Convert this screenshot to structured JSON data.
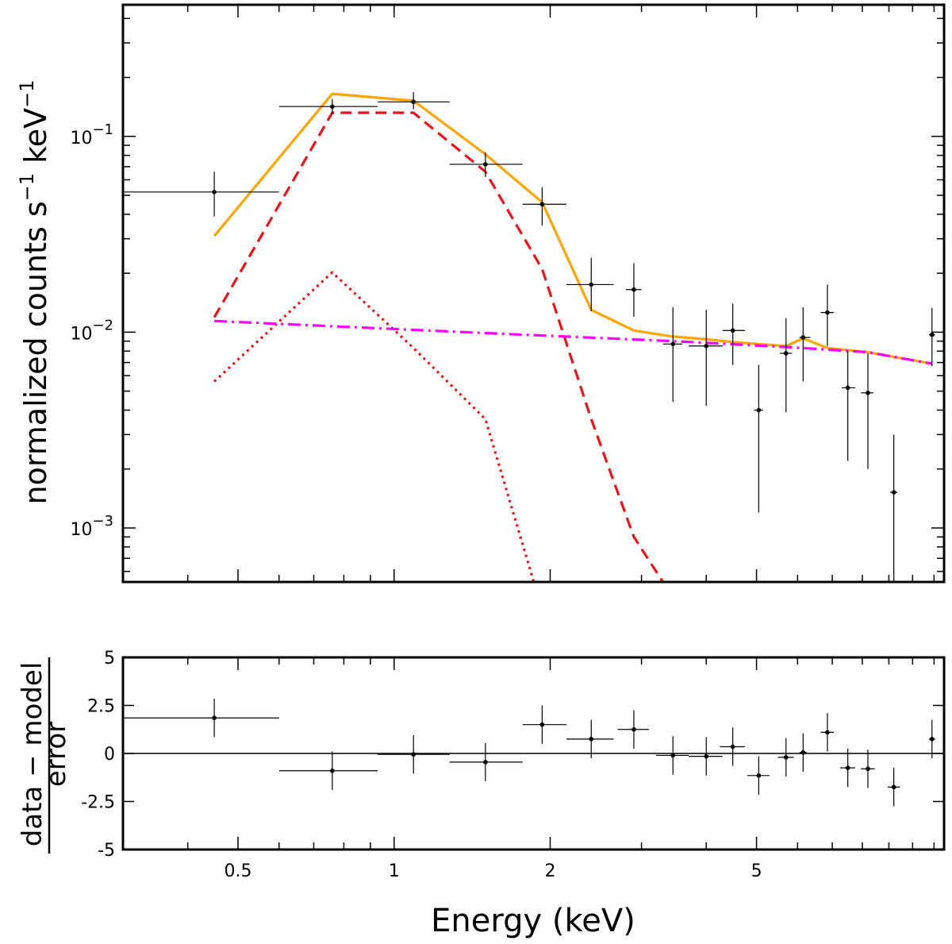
{
  "chart_data": [
    {
      "type": "scatter",
      "panel": "spectrum",
      "xscale": "log",
      "yscale": "log",
      "xlim": [
        0.3,
        11.5
      ],
      "ylim": [
        0.00053,
        0.47
      ],
      "ylabel_main": "normalized counts s",
      "ylabel_sup1": "−1",
      "ylabel_mid": " keV",
      "ylabel_sup2": "−1",
      "ytick_labels": [
        {
          "value": 0.1,
          "base": "10",
          "exp": "−1"
        },
        {
          "value": 0.01,
          "base": "10",
          "exp": "−2"
        },
        {
          "value": 0.001,
          "base": "10",
          "exp": "−3"
        }
      ],
      "data_points": [
        {
          "x": 0.45,
          "xlo": 0.3,
          "xhi": 0.6,
          "y": 0.052,
          "ylo": 0.039,
          "yhi": 0.066
        },
        {
          "x": 0.76,
          "xlo": 0.6,
          "xhi": 0.93,
          "y": 0.142,
          "ylo": 0.13,
          "yhi": 0.155
        },
        {
          "x": 1.09,
          "xlo": 0.93,
          "xhi": 1.28,
          "y": 0.15,
          "ylo": 0.138,
          "yhi": 0.168
        },
        {
          "x": 1.5,
          "xlo": 1.28,
          "xhi": 1.77,
          "y": 0.072,
          "ylo": 0.062,
          "yhi": 0.083
        },
        {
          "x": 1.93,
          "xlo": 1.77,
          "xhi": 2.15,
          "y": 0.045,
          "ylo": 0.035,
          "yhi": 0.055
        },
        {
          "x": 2.4,
          "xlo": 2.15,
          "xhi": 2.65,
          "y": 0.0175,
          "ylo": 0.0128,
          "yhi": 0.024
        },
        {
          "x": 2.9,
          "xlo": 2.8,
          "xhi": 3.0,
          "y": 0.0165,
          "ylo": 0.012,
          "yhi": 0.0225
        },
        {
          "x": 3.45,
          "xlo": 3.3,
          "xhi": 3.6,
          "y": 0.0087,
          "ylo": 0.0044,
          "yhi": 0.0134
        },
        {
          "x": 4.0,
          "xlo": 3.7,
          "xhi": 4.3,
          "y": 0.0085,
          "ylo": 0.0042,
          "yhi": 0.013
        },
        {
          "x": 4.5,
          "xlo": 4.3,
          "xhi": 4.75,
          "y": 0.0102,
          "ylo": 0.0068,
          "yhi": 0.014
        },
        {
          "x": 5.05,
          "xlo": 4.95,
          "xhi": 5.15,
          "y": 0.004,
          "ylo": 0.0012,
          "yhi": 0.0068
        },
        {
          "x": 5.7,
          "xlo": 5.55,
          "xhi": 5.85,
          "y": 0.0078,
          "ylo": 0.0039,
          "yhi": 0.0118
        },
        {
          "x": 6.15,
          "xlo": 6.05,
          "xhi": 6.35,
          "y": 0.0094,
          "ylo": 0.0056,
          "yhi": 0.0134
        },
        {
          "x": 6.85,
          "xlo": 6.65,
          "xhi": 7.05,
          "y": 0.0126,
          "ylo": 0.0085,
          "yhi": 0.0175
        },
        {
          "x": 7.5,
          "xlo": 7.3,
          "xhi": 7.75,
          "y": 0.0052,
          "ylo": 0.0022,
          "yhi": 0.008
        },
        {
          "x": 8.2,
          "xlo": 7.95,
          "xhi": 8.4,
          "y": 0.0049,
          "ylo": 0.002,
          "yhi": 0.0078
        },
        {
          "x": 9.2,
          "xlo": 9.05,
          "xhi": 9.35,
          "y": 0.00152,
          "ylo": 0.00053,
          "yhi": 0.003
        },
        {
          "x": 10.9,
          "xlo": 10.75,
          "xhi": 11.05,
          "y": 0.0097,
          "ylo": 0.0067,
          "yhi": 0.0133
        }
      ],
      "series": [
        {
          "name": "total model",
          "style": "solid",
          "color": "#FFA500",
          "points": [
            [
              0.45,
              0.031
            ],
            [
              0.76,
              0.165
            ],
            [
              1.09,
              0.152
            ],
            [
              1.5,
              0.081
            ],
            [
              1.93,
              0.046
            ],
            [
              2.4,
              0.013
            ],
            [
              2.9,
              0.0102
            ],
            [
              3.45,
              0.0095
            ],
            [
              4.0,
              0.0092
            ],
            [
              4.5,
              0.0089
            ],
            [
              5.05,
              0.0087
            ],
            [
              5.7,
              0.0085
            ],
            [
              6.15,
              0.0093
            ],
            [
              6.85,
              0.0083
            ],
            [
              8.2,
              0.0079
            ],
            [
              10.9,
              0.0069
            ]
          ]
        },
        {
          "name": "thermal component 1",
          "style": "dashed",
          "color": "#E8141B",
          "points": [
            [
              0.45,
              0.0119
            ],
            [
              0.76,
              0.132
            ],
            [
              1.09,
              0.132
            ],
            [
              1.5,
              0.066
            ],
            [
              1.93,
              0.021
            ],
            [
              2.4,
              0.0036
            ],
            [
              2.9,
              0.0009
            ],
            [
              3.3,
              0.00053
            ]
          ]
        },
        {
          "name": "thermal component 2",
          "style": "dotted",
          "color": "#E8141B",
          "points": [
            [
              0.45,
              0.0056
            ],
            [
              0.76,
              0.0202
            ],
            [
              1.09,
              0.0083
            ],
            [
              1.5,
              0.0036
            ],
            [
              1.86,
              0.00053
            ]
          ]
        },
        {
          "name": "power-law component",
          "style": "dashdot",
          "color": "#FF00FF",
          "points": [
            [
              0.45,
              0.0114
            ],
            [
              1.5,
              0.0099
            ],
            [
              3.45,
              0.009
            ],
            [
              5.7,
              0.0084
            ],
            [
              8.2,
              0.0079
            ],
            [
              10.9,
              0.0069
            ]
          ]
        }
      ]
    },
    {
      "type": "scatter",
      "panel": "residuals",
      "xscale": "log",
      "yscale": "linear",
      "xlim": [
        0.3,
        11.5
      ],
      "ylim": [
        -5,
        5
      ],
      "xlabel": "Energy (keV)",
      "ylabel_numerator": "data − model",
      "ylabel_denominator": "error",
      "ytick_labels": [
        {
          "value": 5,
          "label": "5"
        },
        {
          "value": 2.5,
          "label": "2.5"
        },
        {
          "value": 0,
          "label": "0"
        },
        {
          "value": -2.5,
          "label": "-2.5"
        },
        {
          "value": -5,
          "label": "-5"
        }
      ],
      "xtick_labels": [
        {
          "value": 0.5,
          "label": "0.5"
        },
        {
          "value": 1,
          "label": "1"
        },
        {
          "value": 2,
          "label": "2"
        },
        {
          "value": 5,
          "label": "5"
        }
      ],
      "data_points": [
        {
          "x": 0.45,
          "xlo": 0.3,
          "xhi": 0.6,
          "y": 1.85,
          "ylo": 0.85,
          "yhi": 2.85
        },
        {
          "x": 0.76,
          "xlo": 0.6,
          "xhi": 0.93,
          "y": -0.9,
          "ylo": -1.9,
          "yhi": 0.1
        },
        {
          "x": 1.09,
          "xlo": 0.93,
          "xhi": 1.28,
          "y": -0.05,
          "ylo": -1.05,
          "yhi": 0.95
        },
        {
          "x": 1.5,
          "xlo": 1.28,
          "xhi": 1.77,
          "y": -0.45,
          "ylo": -1.45,
          "yhi": 0.55
        },
        {
          "x": 1.93,
          "xlo": 1.77,
          "xhi": 2.15,
          "y": 1.5,
          "ylo": 0.5,
          "yhi": 2.5
        },
        {
          "x": 2.4,
          "xlo": 2.15,
          "xhi": 2.65,
          "y": 0.75,
          "ylo": -0.25,
          "yhi": 1.75
        },
        {
          "x": 2.9,
          "xlo": 2.7,
          "xhi": 3.1,
          "y": 1.25,
          "ylo": 0.25,
          "yhi": 2.25
        },
        {
          "x": 3.45,
          "xlo": 3.2,
          "xhi": 3.7,
          "y": -0.1,
          "ylo": -1.1,
          "yhi": 0.9
        },
        {
          "x": 4.0,
          "xlo": 3.7,
          "xhi": 4.3,
          "y": -0.15,
          "ylo": -1.15,
          "yhi": 0.85
        },
        {
          "x": 4.5,
          "xlo": 4.25,
          "xhi": 4.75,
          "y": 0.35,
          "ylo": -0.65,
          "yhi": 1.35
        },
        {
          "x": 5.05,
          "xlo": 4.8,
          "xhi": 5.3,
          "y": -1.15,
          "ylo": -2.15,
          "yhi": -0.15
        },
        {
          "x": 5.7,
          "xlo": 5.5,
          "xhi": 5.9,
          "y": -0.2,
          "ylo": -1.2,
          "yhi": 0.8
        },
        {
          "x": 6.15,
          "xlo": 6.05,
          "xhi": 6.25,
          "y": 0.05,
          "ylo": -0.95,
          "yhi": 1.05
        },
        {
          "x": 6.85,
          "xlo": 6.65,
          "xhi": 7.05,
          "y": 1.1,
          "ylo": 0.1,
          "yhi": 2.1
        },
        {
          "x": 7.5,
          "xlo": 7.25,
          "xhi": 7.75,
          "y": -0.75,
          "ylo": -1.75,
          "yhi": 0.25
        },
        {
          "x": 8.2,
          "xlo": 7.95,
          "xhi": 8.45,
          "y": -0.8,
          "ylo": -1.8,
          "yhi": 0.2
        },
        {
          "x": 9.2,
          "xlo": 8.95,
          "xhi": 9.45,
          "y": -1.75,
          "ylo": -2.75,
          "yhi": -0.75
        },
        {
          "x": 10.9,
          "xlo": 10.75,
          "xhi": 11.05,
          "y": 0.75,
          "ylo": -0.25,
          "yhi": 1.75
        }
      ],
      "reference_line": 0
    }
  ],
  "colors": {
    "total_model": "#FFA500",
    "thermal": "#E8141B",
    "powerlaw": "#FF00FF",
    "data": "#000000"
  }
}
